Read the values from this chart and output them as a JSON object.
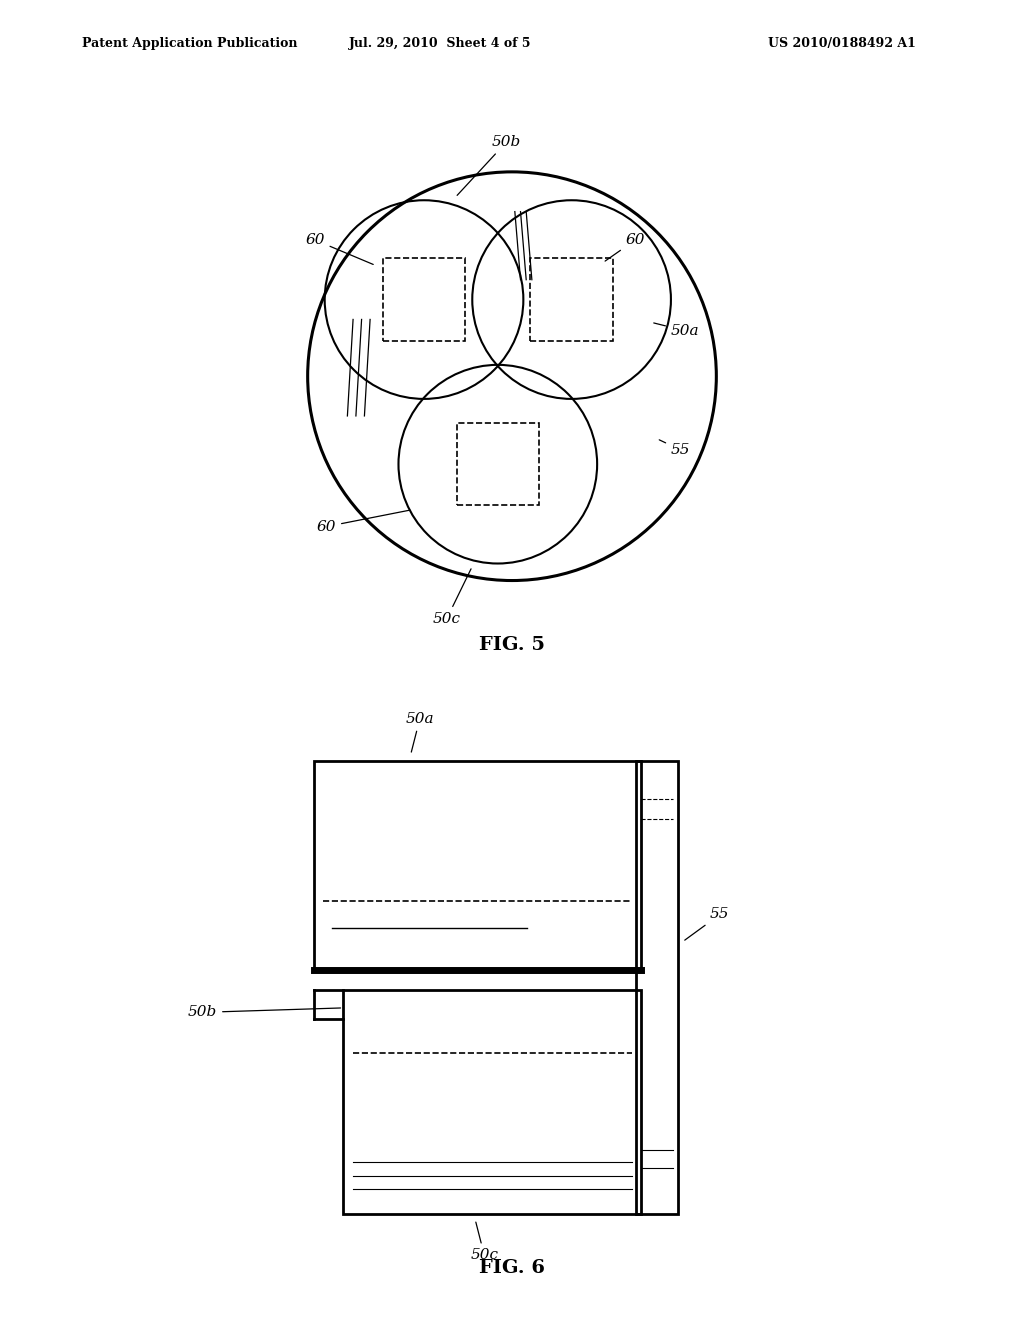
{
  "header_left": "Patent Application Publication",
  "header_mid": "Jul. 29, 2010  Sheet 4 of 5",
  "header_right": "US 2010/0188492 A1",
  "fig5_label": "FIG. 5",
  "fig6_label": "FIG. 6",
  "bg_color": "#ffffff"
}
